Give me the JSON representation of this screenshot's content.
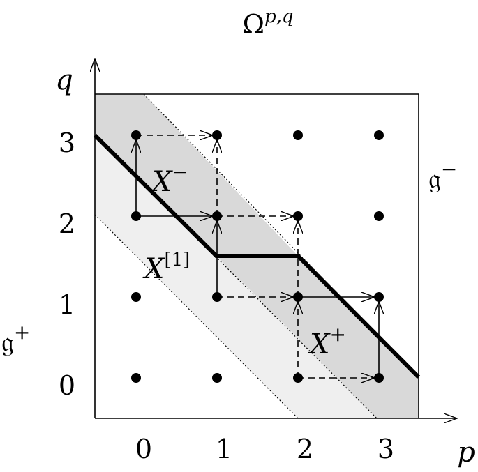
{
  "title": {
    "base": "Ω",
    "sup": "p,q"
  },
  "axes": {
    "x_label": "p",
    "y_label": "q"
  },
  "x_ticks": [
    "0",
    "1",
    "2",
    "3"
  ],
  "y_ticks": [
    "0",
    "1",
    "2",
    "3"
  ],
  "side_labels": {
    "left": {
      "base": "𝔤",
      "sup": "+"
    },
    "right": {
      "base": "𝔤",
      "sup": "−"
    }
  },
  "regions": {
    "x_minus": {
      "base": "X",
      "sup": "−"
    },
    "x_one": {
      "base": "X",
      "sup": "[1]"
    },
    "x_plus": {
      "base": "X",
      "sup": "+"
    }
  },
  "grid_points": [
    [
      0,
      0
    ],
    [
      1,
      0
    ],
    [
      2,
      0
    ],
    [
      3,
      0
    ],
    [
      0,
      1
    ],
    [
      1,
      1
    ],
    [
      2,
      1
    ],
    [
      3,
      1
    ],
    [
      0,
      2
    ],
    [
      1,
      2
    ],
    [
      2,
      2
    ],
    [
      3,
      2
    ],
    [
      0,
      3
    ],
    [
      1,
      3
    ],
    [
      2,
      3
    ],
    [
      3,
      3
    ]
  ],
  "solid_arrows": [
    {
      "from": [
        0,
        2
      ],
      "to": [
        0,
        3
      ]
    },
    {
      "from": [
        0,
        2
      ],
      "to": [
        1,
        2
      ]
    },
    {
      "from": [
        1,
        1
      ],
      "to": [
        1,
        2
      ]
    },
    {
      "from": [
        2,
        1
      ],
      "to": [
        3,
        1
      ]
    },
    {
      "from": [
        3,
        0
      ],
      "to": [
        3,
        1
      ]
    }
  ],
  "dashed_arrows": [
    {
      "from": [
        0,
        3
      ],
      "to": [
        1,
        3
      ]
    },
    {
      "from": [
        1,
        2
      ],
      "to": [
        1,
        3
      ]
    },
    {
      "from": [
        1,
        2
      ],
      "to": [
        2,
        2
      ]
    },
    {
      "from": [
        2,
        1
      ],
      "to": [
        2,
        2
      ]
    },
    {
      "from": [
        1,
        1
      ],
      "to": [
        2,
        1
      ]
    },
    {
      "from": [
        2,
        0
      ],
      "to": [
        2,
        1
      ]
    },
    {
      "from": [
        2,
        0
      ],
      "to": [
        3,
        0
      ]
    }
  ],
  "colors": {
    "dark_band": "#d9d9d9",
    "light_band": "#efefef",
    "ink": "#000000"
  }
}
